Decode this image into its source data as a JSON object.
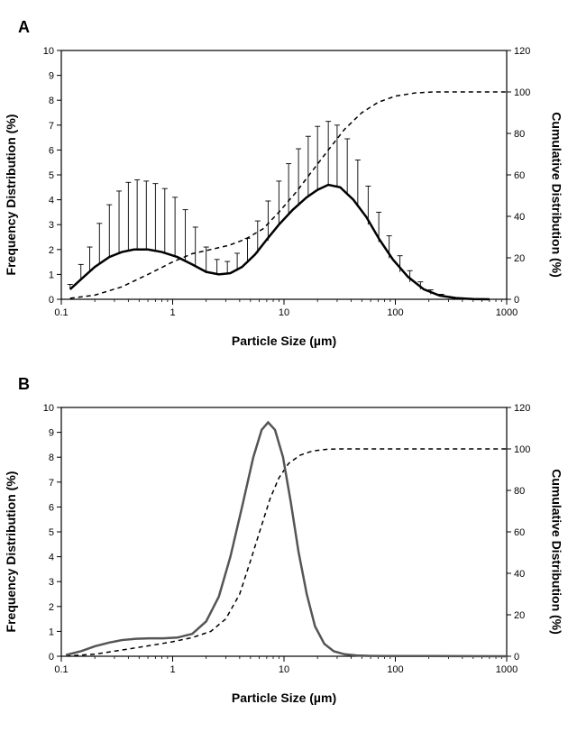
{
  "panels": {
    "A": {
      "label": "A",
      "x_label": "Particle Size (µm)",
      "y_left_label": "Frequency Distribution (%)",
      "y_right_label": "Cumulative Distribution (%)",
      "x_scale": "log",
      "xlim": [
        0.1,
        1000
      ],
      "x_ticks": [
        0.1,
        1,
        10,
        100,
        1000
      ],
      "y_left_lim": [
        0,
        10
      ],
      "y_left_ticks": [
        0,
        1,
        2,
        3,
        4,
        5,
        6,
        7,
        8,
        9,
        10
      ],
      "y_right_lim": [
        0,
        120
      ],
      "y_right_ticks": [
        0,
        20,
        40,
        60,
        80,
        100,
        120
      ],
      "tick_fontsize": 11,
      "label_fontsize": 14,
      "background_color": "#ffffff",
      "series": {
        "frequency": {
          "type": "line",
          "color": "#000000",
          "line_width": 2.5,
          "dash": "none",
          "points": [
            [
              0.12,
              0.4
            ],
            [
              0.15,
              0.8
            ],
            [
              0.2,
              1.3
            ],
            [
              0.27,
              1.7
            ],
            [
              0.35,
              1.9
            ],
            [
              0.45,
              2.0
            ],
            [
              0.6,
              2.0
            ],
            [
              0.8,
              1.9
            ],
            [
              1.1,
              1.7
            ],
            [
              1.5,
              1.4
            ],
            [
              2.0,
              1.1
            ],
            [
              2.6,
              1.0
            ],
            [
              3.3,
              1.05
            ],
            [
              4.2,
              1.3
            ],
            [
              5.5,
              1.8
            ],
            [
              7,
              2.4
            ],
            [
              9,
              3.0
            ],
            [
              12,
              3.6
            ],
            [
              16,
              4.1
            ],
            [
              20,
              4.4
            ],
            [
              25,
              4.6
            ],
            [
              32,
              4.5
            ],
            [
              42,
              4.0
            ],
            [
              55,
              3.3
            ],
            [
              72,
              2.4
            ],
            [
              95,
              1.6
            ],
            [
              130,
              0.9
            ],
            [
              180,
              0.4
            ],
            [
              250,
              0.15
            ],
            [
              350,
              0.05
            ],
            [
              500,
              0.01
            ],
            [
              700,
              0
            ]
          ],
          "error_cap_width": 3,
          "error_color": "#000000",
          "errors": [
            [
              0.12,
              0.4,
              0.2
            ],
            [
              0.15,
              0.8,
              0.6
            ],
            [
              0.18,
              1.1,
              1.0
            ],
            [
              0.22,
              1.45,
              1.6
            ],
            [
              0.27,
              1.7,
              2.1
            ],
            [
              0.33,
              1.85,
              2.5
            ],
            [
              0.4,
              1.95,
              2.75
            ],
            [
              0.48,
              2.0,
              2.8
            ],
            [
              0.58,
              2.0,
              2.75
            ],
            [
              0.7,
              1.95,
              2.7
            ],
            [
              0.85,
              1.85,
              2.6
            ],
            [
              1.05,
              1.7,
              2.4
            ],
            [
              1.3,
              1.5,
              2.1
            ],
            [
              1.6,
              1.3,
              1.6
            ],
            [
              2.0,
              1.1,
              1.0
            ],
            [
              2.5,
              1.0,
              0.6
            ],
            [
              3.1,
              1.02,
              0.5
            ],
            [
              3.8,
              1.15,
              0.7
            ],
            [
              4.7,
              1.45,
              1.0
            ],
            [
              5.8,
              1.85,
              1.3
            ],
            [
              7.2,
              2.35,
              1.6
            ],
            [
              9,
              2.95,
              1.8
            ],
            [
              11,
              3.45,
              2.0
            ],
            [
              13.5,
              3.85,
              2.2
            ],
            [
              16.5,
              4.15,
              2.4
            ],
            [
              20,
              4.4,
              2.55
            ],
            [
              25,
              4.6,
              2.55
            ],
            [
              30,
              4.55,
              2.45
            ],
            [
              37,
              4.25,
              2.2
            ],
            [
              46,
              3.7,
              1.9
            ],
            [
              57,
              3.0,
              1.55
            ],
            [
              71,
              2.3,
              1.2
            ],
            [
              88,
              1.65,
              0.9
            ],
            [
              110,
              1.1,
              0.65
            ],
            [
              135,
              0.7,
              0.45
            ],
            [
              168,
              0.4,
              0.3
            ],
            [
              208,
              0.2,
              0.18
            ],
            [
              260,
              0.1,
              0.1
            ]
          ]
        },
        "cumulative": {
          "type": "line",
          "axis": "right",
          "color": "#000000",
          "line_width": 1.5,
          "dash": "5,4",
          "points": [
            [
              0.12,
              0.5
            ],
            [
              0.2,
              2
            ],
            [
              0.35,
              6
            ],
            [
              0.6,
              12
            ],
            [
              1,
              18
            ],
            [
              1.5,
              22
            ],
            [
              2.2,
              24
            ],
            [
              3.2,
              26
            ],
            [
              4.5,
              29
            ],
            [
              6.5,
              34
            ],
            [
              9,
              42
            ],
            [
              13,
              52
            ],
            [
              18,
              62
            ],
            [
              25,
              72
            ],
            [
              35,
              82
            ],
            [
              50,
              90
            ],
            [
              70,
              95
            ],
            [
              100,
              98
            ],
            [
              150,
              99.5
            ],
            [
              220,
              100
            ],
            [
              320,
              100
            ],
            [
              500,
              100
            ],
            [
              1000,
              100
            ]
          ]
        }
      }
    },
    "B": {
      "label": "B",
      "x_label": "Particle Size  (µm)",
      "y_left_label": "Frequency Distribution (%)",
      "y_right_label": "Cumulative Distribution (%)",
      "x_scale": "log",
      "xlim": [
        0.1,
        1000
      ],
      "x_ticks": [
        0.1,
        1,
        10,
        100,
        1000
      ],
      "y_left_lim": [
        0,
        10
      ],
      "y_left_ticks": [
        0,
        1,
        2,
        3,
        4,
        5,
        6,
        7,
        8,
        9,
        10
      ],
      "y_right_lim": [
        0,
        120
      ],
      "y_right_ticks": [
        0,
        20,
        40,
        60,
        80,
        100,
        120
      ],
      "tick_fontsize": 11,
      "label_fontsize": 14,
      "background_color": "#ffffff",
      "series": {
        "frequency": {
          "type": "line",
          "color": "#555555",
          "line_width": 2.5,
          "dash": "none",
          "points": [
            [
              0.11,
              0.05
            ],
            [
              0.15,
              0.2
            ],
            [
              0.2,
              0.4
            ],
            [
              0.27,
              0.55
            ],
            [
              0.35,
              0.65
            ],
            [
              0.47,
              0.7
            ],
            [
              0.62,
              0.72
            ],
            [
              0.82,
              0.72
            ],
            [
              1.1,
              0.75
            ],
            [
              1.5,
              0.9
            ],
            [
              2.0,
              1.4
            ],
            [
              2.6,
              2.4
            ],
            [
              3.3,
              4.0
            ],
            [
              4.2,
              6.0
            ],
            [
              5.3,
              8.0
            ],
            [
              6.3,
              9.1
            ],
            [
              7.2,
              9.4
            ],
            [
              8.3,
              9.1
            ],
            [
              9.8,
              8.0
            ],
            [
              11.5,
              6.2
            ],
            [
              13.5,
              4.2
            ],
            [
              16,
              2.5
            ],
            [
              19,
              1.2
            ],
            [
              23,
              0.5
            ],
            [
              28,
              0.2
            ],
            [
              35,
              0.08
            ],
            [
              45,
              0.03
            ],
            [
              60,
              0.015
            ],
            [
              80,
              0.01
            ],
            [
              120,
              0.01
            ],
            [
              200,
              0.01
            ],
            [
              400,
              0.005
            ],
            [
              1000,
              0
            ]
          ]
        },
        "cumulative": {
          "type": "line",
          "axis": "right",
          "color": "#000000",
          "line_width": 1.5,
          "dash": "5,4",
          "points": [
            [
              0.11,
              0.1
            ],
            [
              0.2,
              1
            ],
            [
              0.35,
              3
            ],
            [
              0.6,
              5
            ],
            [
              1,
              7
            ],
            [
              1.5,
              9
            ],
            [
              2.2,
              12
            ],
            [
              3,
              18
            ],
            [
              4,
              30
            ],
            [
              5,
              46
            ],
            [
              6.2,
              62
            ],
            [
              7.5,
              76
            ],
            [
              9,
              86
            ],
            [
              11,
              93
            ],
            [
              14,
              97
            ],
            [
              18,
              99
            ],
            [
              24,
              99.8
            ],
            [
              32,
              100
            ],
            [
              50,
              100
            ],
            [
              100,
              100
            ],
            [
              300,
              100
            ],
            [
              1000,
              100
            ]
          ]
        }
      }
    }
  }
}
